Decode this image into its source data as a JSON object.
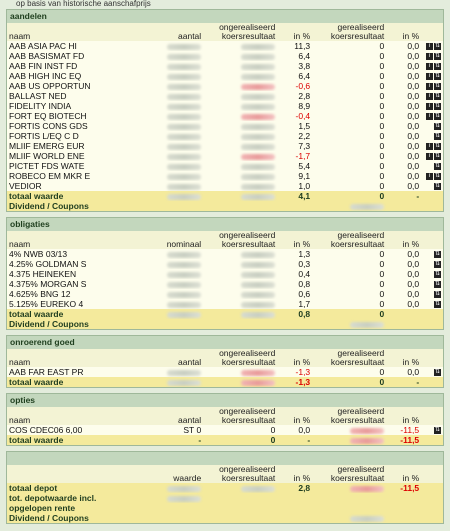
{
  "top_note": "op basis van historische aanschafprijs",
  "sections": [
    {
      "title": "aandelen",
      "columns": [
        "naam",
        "aantal",
        "ongerealiseerd koersresultaat",
        "in %",
        "gerealiseerd koersresultaat",
        "in %"
      ],
      "rows": [
        {
          "name": "AAB ASIA PAC HI",
          "upct": "11,3",
          "real": "0",
          "rpct": "0,0"
        },
        {
          "name": "AAB BASISMAT FD",
          "upct": "6,4",
          "real": "0",
          "rpct": "0,0"
        },
        {
          "name": "AAB FIN INST FD",
          "upct": "3,8",
          "real": "0",
          "rpct": "0,0"
        },
        {
          "name": "AAB HIGH INC EQ",
          "upct": "6,4",
          "real": "0",
          "rpct": "0,0"
        },
        {
          "name": "AAB US OPPORTUN",
          "upct": "-0,6",
          "real": "0",
          "rpct": "0,0"
        },
        {
          "name": "BALLAST NED",
          "upct": "2,8",
          "real": "0",
          "rpct": "0,0"
        },
        {
          "name": "FIDELITY INDIA",
          "upct": "8,9",
          "real": "0",
          "rpct": "0,0"
        },
        {
          "name": "FORT EQ BIOTECH",
          "upct": "-0,4",
          "real": "0",
          "rpct": "0,0"
        },
        {
          "name": "FORTIS CONS GDS",
          "upct": "1,5",
          "real": "0",
          "rpct": "0,0"
        },
        {
          "name": "FORTIS L/EQ C D",
          "upct": "2,2",
          "real": "0",
          "rpct": "0,0"
        },
        {
          "name": "MLIIF EMERG EUR",
          "upct": "7,3",
          "real": "0",
          "rpct": "0,0"
        },
        {
          "name": "MLIIF WORLD ENE",
          "upct": "-1,7",
          "real": "0",
          "rpct": "0,0"
        },
        {
          "name": "PICTET FDS WATE",
          "upct": "5,4",
          "real": "0",
          "rpct": "0,0"
        },
        {
          "name": "ROBECO EM MKR E",
          "upct": "9,1",
          "real": "0",
          "rpct": "0,0"
        },
        {
          "name": "VEDIOR",
          "upct": "1,0",
          "real": "0",
          "rpct": "0,0"
        }
      ],
      "total": {
        "name": "totaal waarde",
        "upct": "4,1",
        "real": "0",
        "rpct": "-"
      },
      "dividend": "Dividend / Coupons"
    },
    {
      "title": "obligaties",
      "columns": [
        "naam",
        "nominaal",
        "ongerealiseerd koersresultaat",
        "in %",
        "gerealiseerd koersresultaat",
        "in %"
      ],
      "rows": [
        {
          "name": "4% NWB 03/13",
          "upct": "1,3",
          "real": "0",
          "rpct": "0,0"
        },
        {
          "name": "4.25% GOLDMAN S",
          "upct": "0,3",
          "real": "0",
          "rpct": "0,0"
        },
        {
          "name": "4.375 HEINEKEN",
          "upct": "0,4",
          "real": "0",
          "rpct": "0,0"
        },
        {
          "name": "4.375% MORGAN S",
          "upct": "0,8",
          "real": "0",
          "rpct": "0,0"
        },
        {
          "name": "4.625% BNG 12",
          "upct": "0,6",
          "real": "0",
          "rpct": "0,0"
        },
        {
          "name": "5.125% EUREKO 4",
          "upct": "1,7",
          "real": "0",
          "rpct": "0,0"
        }
      ],
      "total": {
        "name": "totaal waarde",
        "upct": "0,8",
        "real": "0"
      },
      "dividend": "Dividend / Coupons"
    },
    {
      "title": "onroerend goed",
      "columns": [
        "naam",
        "aantal",
        "ongerealiseerd koersresultaat",
        "in %",
        "gerealiseerd koersresultaat",
        "in %"
      ],
      "rows": [
        {
          "name": "AAB FAR EAST PR",
          "upct": "-1,3",
          "real": "0",
          "rpct": "0,0"
        }
      ],
      "total": {
        "name": "totaal waarde",
        "upct": "-1,3",
        "real": "0",
        "rpct": "-"
      }
    },
    {
      "title": "opties",
      "columns": [
        "naam",
        "aantal",
        "ongerealiseerd koersresultaat",
        "in %",
        "gerealiseerd koersresultaat",
        "in %"
      ],
      "rows": [
        {
          "name": "COS CDEC06 6,00",
          "qty": "ST 0",
          "unreal": "0",
          "upct": "0,0",
          "rpct": "-11,5"
        }
      ],
      "total": {
        "name": "totaal waarde",
        "qty": "-",
        "unreal": "0",
        "upct": "-",
        "rpct": "-11,5"
      }
    },
    {
      "columns": [
        "waarde",
        "ongerealiseerd koersresultaat",
        "in %",
        "gerealiseerd koersresultaat",
        "in %"
      ],
      "summary": [
        {
          "name": "totaal depot",
          "upct": "2,8",
          "rpct": "-11,5"
        },
        {
          "name": "tot. depotwaarde incl."
        },
        {
          "name": "opgelopen rente"
        },
        {
          "name": "Dividend / Coupons"
        }
      ]
    }
  ]
}
